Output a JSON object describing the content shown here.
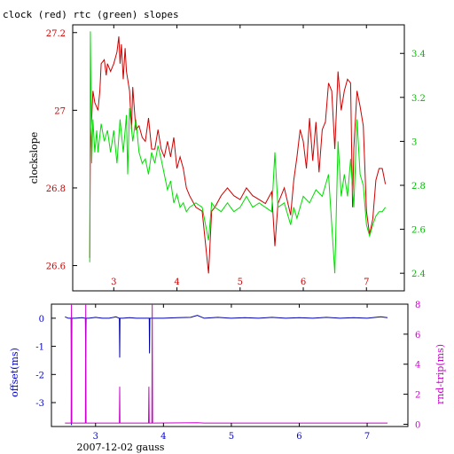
{
  "colors": {
    "clock": "#cc0000",
    "rtc": "#00dd00",
    "offset": "#0000aa",
    "rndtrip": "#cc00cc",
    "axis_left_top": "#cc0000",
    "axis_right_top": "#00bb00",
    "axis_left_bottom": "#0000cc",
    "axis_right_bottom": "#cc00cc",
    "frame": "#000000"
  },
  "chart_data": [
    {
      "type": "line",
      "title": "clock (red) rtc (green) slopes",
      "xlabel": "",
      "ylabel": "clockslope",
      "xlim": [
        2.35,
        7.6
      ],
      "ylim": [
        26.535,
        27.22
      ],
      "y2lim": [
        2.32,
        3.53
      ],
      "x_ticks": [
        3,
        4,
        5,
        6,
        7
      ],
      "y_ticks": [
        "26.6",
        "26.8",
        "27",
        "27.2"
      ],
      "y_tick_values": [
        26.6,
        26.8,
        27.0,
        27.2
      ],
      "y2_ticks": [
        "2.4",
        "2.6",
        "2.8",
        "3",
        "3.2",
        "3.4"
      ],
      "y2_tick_values": [
        2.4,
        2.6,
        2.8,
        3.0,
        3.2,
        3.4
      ],
      "grid": false,
      "series": [
        {
          "name": "clock",
          "axis": "left",
          "x": [
            2.62,
            2.63,
            2.65,
            2.67,
            2.7,
            2.75,
            2.78,
            2.8,
            2.85,
            2.88,
            2.9,
            2.95,
            3.0,
            3.05,
            3.08,
            3.1,
            3.12,
            3.15,
            3.18,
            3.2,
            3.25,
            3.28,
            3.3,
            3.35,
            3.4,
            3.45,
            3.5,
            3.55,
            3.6,
            3.65,
            3.7,
            3.75,
            3.8,
            3.85,
            3.9,
            3.95,
            4.0,
            4.05,
            4.1,
            4.15,
            4.2,
            4.3,
            4.4,
            4.5,
            4.55,
            4.6,
            4.7,
            4.8,
            4.9,
            5.0,
            5.1,
            5.2,
            5.3,
            5.4,
            5.5,
            5.55,
            5.6,
            5.7,
            5.8,
            5.85,
            5.9,
            5.95,
            6.0,
            6.05,
            6.1,
            6.15,
            6.2,
            6.25,
            6.3,
            6.35,
            6.4,
            6.45,
            6.5,
            6.55,
            6.6,
            6.65,
            6.7,
            6.75,
            6.78,
            6.8,
            6.85,
            6.9,
            6.95,
            7.0,
            7.05,
            7.1,
            7.15,
            7.2,
            7.25,
            7.3
          ],
          "values": [
            26.62,
            26.9,
            26.98,
            27.05,
            27.02,
            27.0,
            27.05,
            27.12,
            27.13,
            27.09,
            27.12,
            27.1,
            27.12,
            27.15,
            27.19,
            27.12,
            27.17,
            27.08,
            27.16,
            27.1,
            27.05,
            26.95,
            27.06,
            26.95,
            26.96,
            26.93,
            26.92,
            26.98,
            26.9,
            26.9,
            26.95,
            26.9,
            26.88,
            26.92,
            26.88,
            26.93,
            26.85,
            26.88,
            26.85,
            26.8,
            26.78,
            26.75,
            26.74,
            26.58,
            26.74,
            26.75,
            26.78,
            26.8,
            26.78,
            26.77,
            26.8,
            26.78,
            26.77,
            26.76,
            26.79,
            26.65,
            26.76,
            26.8,
            26.73,
            26.82,
            26.88,
            26.95,
            26.92,
            26.85,
            26.98,
            26.87,
            26.97,
            26.84,
            26.95,
            26.97,
            27.07,
            27.05,
            26.9,
            27.1,
            27.0,
            27.05,
            27.08,
            27.07,
            26.75,
            26.9,
            27.05,
            27.01,
            26.96,
            26.74,
            26.68,
            26.72,
            26.82,
            26.85,
            26.85,
            26.81
          ]
        },
        {
          "name": "rtc",
          "axis": "right",
          "x": [
            2.62,
            2.63,
            2.65,
            2.67,
            2.7,
            2.73,
            2.75,
            2.8,
            2.85,
            2.9,
            2.95,
            3.0,
            3.05,
            3.1,
            3.15,
            3.2,
            3.22,
            3.25,
            3.3,
            3.35,
            3.4,
            3.45,
            3.5,
            3.55,
            3.6,
            3.65,
            3.7,
            3.75,
            3.8,
            3.85,
            3.9,
            3.95,
            4.0,
            4.05,
            4.1,
            4.15,
            4.2,
            4.3,
            4.4,
            4.5,
            4.55,
            4.6,
            4.7,
            4.8,
            4.9,
            5.0,
            5.1,
            5.2,
            5.3,
            5.4,
            5.5,
            5.55,
            5.6,
            5.7,
            5.8,
            5.85,
            5.9,
            6.0,
            6.1,
            6.2,
            6.3,
            6.4,
            6.5,
            6.55,
            6.6,
            6.65,
            6.7,
            6.75,
            6.8,
            6.85,
            6.9,
            6.95,
            7.0,
            7.05,
            7.1,
            7.15,
            7.2,
            7.25,
            7.3
          ],
          "values": [
            2.45,
            3.5,
            2.9,
            3.1,
            2.95,
            3.05,
            2.95,
            3.08,
            3.0,
            3.05,
            2.95,
            3.05,
            2.9,
            3.1,
            2.95,
            3.12,
            2.85,
            3.15,
            3.0,
            3.1,
            2.95,
            2.9,
            2.92,
            2.85,
            2.95,
            2.9,
            2.98,
            2.92,
            2.85,
            2.78,
            2.82,
            2.72,
            2.76,
            2.7,
            2.72,
            2.68,
            2.7,
            2.72,
            2.7,
            2.55,
            2.72,
            2.7,
            2.68,
            2.72,
            2.68,
            2.7,
            2.75,
            2.7,
            2.72,
            2.7,
            2.68,
            2.95,
            2.7,
            2.72,
            2.62,
            2.7,
            2.65,
            2.75,
            2.72,
            2.78,
            2.75,
            2.85,
            2.4,
            3.0,
            2.75,
            2.85,
            2.75,
            2.92,
            2.7,
            3.1,
            2.85,
            2.8,
            2.62,
            2.57,
            2.62,
            2.66,
            2.68,
            2.68,
            2.7
          ]
        }
      ]
    },
    {
      "type": "line",
      "title": "",
      "xlabel": "2007-12-02 gauss",
      "ylabel": "offset(ms)",
      "y2label": "rnd-trip(ms)",
      "xlim": [
        2.35,
        7.6
      ],
      "ylim": [
        -3.85,
        0.5
      ],
      "y2lim": [
        -0.15,
        8.0
      ],
      "x_ticks": [
        3,
        4,
        5,
        6,
        7
      ],
      "y_ticks": [
        "0",
        "-1",
        "-2",
        "-3"
      ],
      "y_tick_values": [
        0,
        -1,
        -2,
        -3
      ],
      "y2_ticks": [
        "0",
        "2",
        "4",
        "6",
        "8"
      ],
      "y2_tick_values": [
        0,
        2,
        4,
        6,
        8
      ],
      "grid": false,
      "series": [
        {
          "name": "offset",
          "axis": "left",
          "x": [
            2.55,
            2.6,
            2.64,
            2.645,
            2.65,
            2.7,
            2.8,
            2.85,
            2.855,
            2.86,
            2.9,
            3.0,
            3.1,
            3.2,
            3.3,
            3.35,
            3.355,
            3.36,
            3.4,
            3.5,
            3.6,
            3.7,
            3.79,
            3.795,
            3.8,
            3.9,
            4.0,
            4.2,
            4.4,
            4.5,
            4.6,
            4.8,
            5.0,
            5.2,
            5.4,
            5.6,
            5.8,
            6.0,
            6.2,
            6.4,
            6.6,
            6.8,
            7.0,
            7.2,
            7.3
          ],
          "values": [
            0.05,
            0.0,
            0.0,
            -3.8,
            0.0,
            0.0,
            0.02,
            0.0,
            -1.4,
            0.0,
            0.0,
            0.03,
            0.0,
            0.0,
            0.05,
            0.0,
            -1.4,
            0.0,
            0.0,
            0.02,
            0.0,
            0.0,
            0.0,
            -1.25,
            0.0,
            0.0,
            0.0,
            0.02,
            0.03,
            0.1,
            0.0,
            0.03,
            0.0,
            0.02,
            0.0,
            0.03,
            0.0,
            0.02,
            0.0,
            0.03,
            0.0,
            0.02,
            0.0,
            0.05,
            0.02
          ]
        },
        {
          "name": "rnd-trip",
          "axis": "right",
          "x": [
            2.55,
            2.64,
            2.645,
            2.65,
            2.85,
            2.855,
            2.86,
            3.35,
            3.355,
            3.36,
            3.78,
            3.785,
            3.79,
            3.83,
            3.835,
            3.84,
            4.5,
            4.6,
            5.0,
            6.0,
            7.0,
            7.3
          ],
          "values": [
            0.08,
            0.08,
            8.0,
            0.08,
            0.08,
            8.0,
            0.08,
            0.08,
            2.5,
            0.08,
            0.08,
            2.5,
            0.08,
            0.08,
            8.0,
            0.08,
            0.1,
            0.08,
            0.08,
            0.08,
            0.08,
            0.08
          ]
        }
      ]
    }
  ]
}
